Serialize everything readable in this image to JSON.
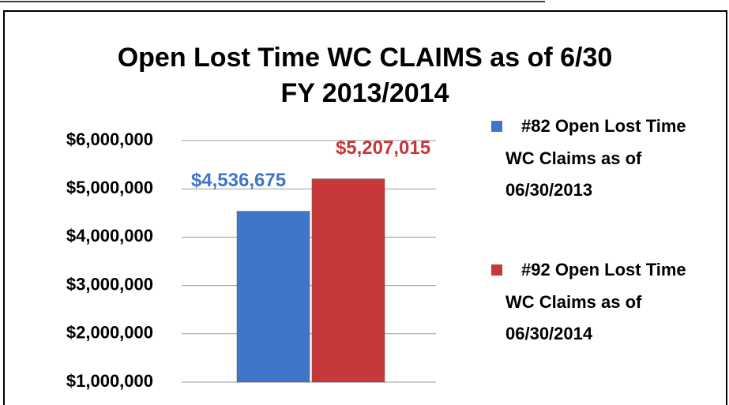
{
  "chart_data": {
    "type": "bar",
    "title": [
      "Open Lost Time WC CLAIMS as of 6/30",
      "FY 2013/2014"
    ],
    "categories": [
      null
    ],
    "series": [
      {
        "name": "#82 Open Lost Time WC Claims as of 06/30/2013",
        "color": "#3f74c6",
        "values": [
          4536675
        ],
        "value_labels": [
          "$4,536,675"
        ]
      },
      {
        "name": "#92 Open Lost Time WC Claims as of 06/30/2014",
        "color": "#c6383a",
        "values": [
          5207015
        ],
        "value_labels": [
          "$5,207,015"
        ]
      }
    ],
    "ylim": [
      1000000,
      6000000
    ],
    "yticks": [
      {
        "value": 1000000,
        "label": "$1,000,000"
      },
      {
        "value": 2000000,
        "label": "$2,000,000"
      },
      {
        "value": 3000000,
        "label": "$3,000,000"
      },
      {
        "value": 4000000,
        "label": "$4,000,000"
      },
      {
        "value": 5000000,
        "label": "$5,000,000"
      },
      {
        "value": 6000000,
        "label": "$6,000,000"
      }
    ],
    "grid": true,
    "legend": "right"
  }
}
